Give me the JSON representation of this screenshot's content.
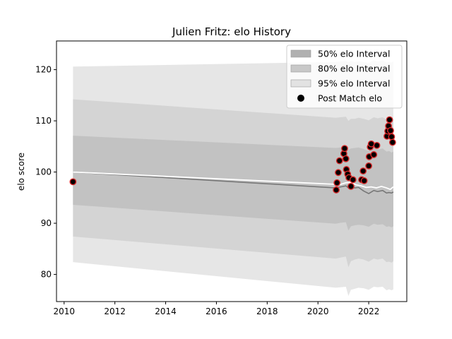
{
  "chart_data": {
    "type": "area",
    "title": "Julien Fritz: elo History",
    "xlabel": "",
    "ylabel": "elo score",
    "xlim": [
      2009.7,
      2023.5
    ],
    "ylim": [
      74.7,
      125.6
    ],
    "xticks": [
      2010,
      2012,
      2014,
      2016,
      2018,
      2020,
      2022
    ],
    "yticks": [
      80,
      90,
      100,
      110,
      120
    ],
    "legend_position": "top-right",
    "grid": false,
    "legend": [
      {
        "label": "50% elo Interval",
        "kind": "band",
        "color": "#b0b0b0"
      },
      {
        "label": "80% elo Interval",
        "kind": "band",
        "color": "#c8c8c8"
      },
      {
        "label": "95% elo Interval",
        "kind": "band",
        "color": "#e2e2e2"
      },
      {
        "label": "Post Match elo",
        "kind": "marker",
        "color": "#000000"
      }
    ],
    "band_x": [
      2010.35,
      2020.7,
      2020.9,
      2021.1,
      2021.2,
      2021.3,
      2021.45,
      2021.6,
      2021.8,
      2022.0,
      2022.2,
      2022.35,
      2022.55,
      2022.7,
      2022.8,
      2022.9,
      2022.97
    ],
    "mean": [
      100.0,
      96.9,
      97.1,
      97.3,
      96.9,
      97.1,
      96.9,
      97.0,
      96.3,
      95.8,
      96.4,
      96.2,
      96.4,
      95.9,
      96.0,
      95.9,
      96.1
    ],
    "bands": [
      {
        "name": "95% elo Interval",
        "color": "#e2e2e2",
        "upper": [
          120.6,
          121.5,
          121.6,
          121.7,
          121.4,
          121.7,
          121.5,
          121.6,
          121.5,
          121.3,
          121.8,
          121.6,
          121.8,
          121.4,
          121.5,
          121.4,
          121.6
        ],
        "lower": [
          82.4,
          77.4,
          77.5,
          77.6,
          75.8,
          77.0,
          77.2,
          77.4,
          77.3,
          77.0,
          77.6,
          77.5,
          77.6,
          76.9,
          77.1,
          76.9,
          77.1
        ]
      },
      {
        "name": "80% elo Interval",
        "color": "#d0d0d0",
        "upper": [
          114.2,
          110.6,
          110.7,
          110.8,
          110.0,
          110.4,
          110.4,
          110.6,
          110.4,
          110.1,
          110.7,
          110.5,
          110.7,
          110.2,
          110.3,
          110.1,
          110.4
        ],
        "lower": [
          87.4,
          83.1,
          83.3,
          83.5,
          81.4,
          82.6,
          82.9,
          83.1,
          82.9,
          82.5,
          83.1,
          82.9,
          83.1,
          82.4,
          82.5,
          82.3,
          82.6
        ]
      },
      {
        "name": "50% elo Interval",
        "color": "#bebebe",
        "upper": [
          107.1,
          104.7,
          104.8,
          104.9,
          104.3,
          104.6,
          104.7,
          104.8,
          104.5,
          104.1,
          104.8,
          104.4,
          104.6,
          104.0,
          104.1,
          103.8,
          104.0
        ],
        "lower": [
          93.6,
          89.9,
          90.1,
          90.2,
          88.6,
          89.4,
          89.6,
          89.7,
          89.6,
          89.3,
          89.9,
          89.7,
          89.8,
          89.3,
          89.4,
          89.2,
          89.4
        ]
      }
    ],
    "smoothed": {
      "x": [
        2010.35,
        2020.7,
        2020.9,
        2021.1,
        2021.3,
        2021.5,
        2021.7,
        2021.9,
        2022.1,
        2022.3,
        2022.5,
        2022.7,
        2022.85,
        2022.97
      ],
      "y": [
        100.0,
        97.6,
        97.6,
        97.9,
        98.0,
        97.5,
        97.3,
        97.0,
        97.1,
        96.9,
        97.2,
        96.9,
        96.6,
        97.1
      ]
    },
    "points": {
      "x": [
        2010.35,
        2020.72,
        2020.75,
        2020.8,
        2020.85,
        2021.02,
        2021.05,
        2021.1,
        2021.12,
        2021.17,
        2021.22,
        2021.3,
        2021.38,
        2021.72,
        2021.78,
        2021.82,
        2022.0,
        2022.02,
        2022.06,
        2022.1,
        2022.2,
        2022.32,
        2022.72,
        2022.75,
        2022.78,
        2022.82,
        2022.86,
        2022.9,
        2022.94
      ],
      "y": [
        98.1,
        96.5,
        97.9,
        99.9,
        102.2,
        103.6,
        104.6,
        102.6,
        100.5,
        99.6,
        98.9,
        97.2,
        98.5,
        98.5,
        100.2,
        98.3,
        101.2,
        103.0,
        104.9,
        105.5,
        103.4,
        105.2,
        107.0,
        108.0,
        109.0,
        110.2,
        108.1,
        106.9,
        105.8
      ]
    }
  }
}
